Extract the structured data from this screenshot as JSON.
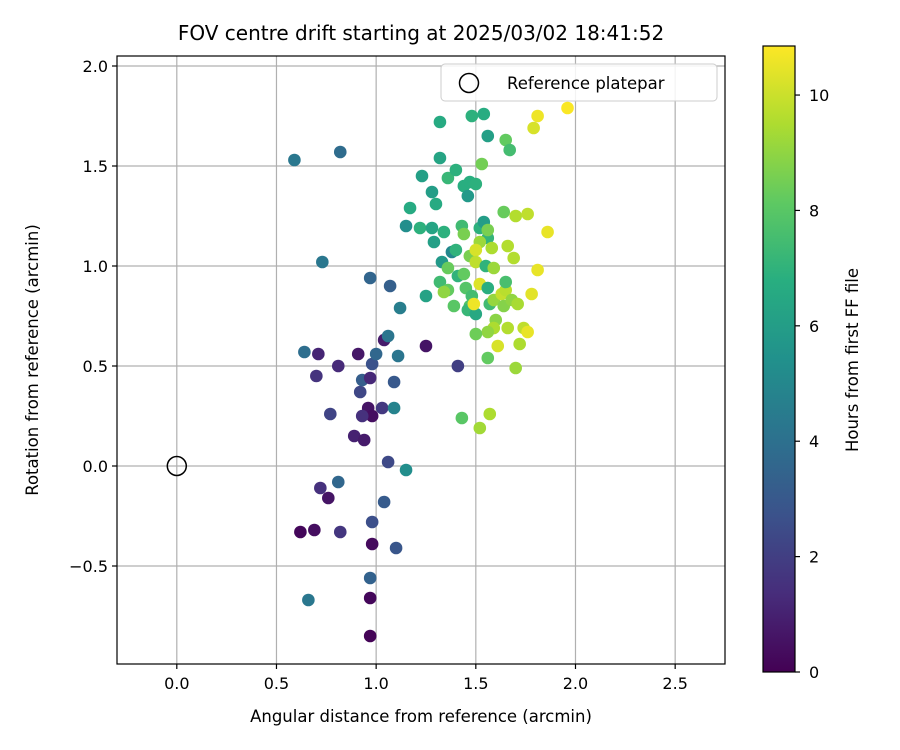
{
  "chart_data": {
    "type": "scatter",
    "title": "FOV centre drift starting at 2025/03/02 18:41:52",
    "xlabel": "Angular distance from reference (arcmin)",
    "ylabel": "Rotation from reference (arcmin)",
    "xlim": [
      -0.3,
      2.75
    ],
    "ylim": [
      -0.99,
      2.05
    ],
    "xticks": [
      "0.0",
      "0.5",
      "1.0",
      "1.5",
      "2.0",
      "2.5"
    ],
    "xtick_values": [
      0,
      0.5,
      1.0,
      1.5,
      2.0,
      2.5
    ],
    "yticks": [
      "−0.5",
      "0.0",
      "0.5",
      "1.0",
      "1.5",
      "2.0"
    ],
    "ytick_values": [
      -0.5,
      0,
      0.5,
      1.0,
      1.5,
      2.0
    ],
    "grid": true,
    "colormap": "viridis",
    "colorbar": {
      "label": "Hours from first FF file",
      "range": [
        0,
        10.85
      ],
      "ticks": [
        "0",
        "2",
        "4",
        "6",
        "8",
        "10"
      ],
      "tick_values": [
        0,
        2,
        4,
        6,
        8,
        10
      ]
    },
    "legend": {
      "placement": "top-right",
      "entries": [
        "Reference platepar"
      ]
    },
    "reference": {
      "x": 0.0,
      "y": 0.0,
      "label": "Reference platepar"
    },
    "points": [
      {
        "x": 0.97,
        "y": -0.85,
        "h": 0.1
      },
      {
        "x": 0.97,
        "y": -0.66,
        "h": 0.2
      },
      {
        "x": 0.98,
        "y": -0.39,
        "h": 0.3
      },
      {
        "x": 0.62,
        "y": -0.33,
        "h": 0.2
      },
      {
        "x": 0.69,
        "y": -0.32,
        "h": 0.4
      },
      {
        "x": 0.76,
        "y": -0.16,
        "h": 0.6
      },
      {
        "x": 0.72,
        "y": -0.11,
        "h": 1.5
      },
      {
        "x": 0.82,
        "y": -0.33,
        "h": 1.7
      },
      {
        "x": 0.98,
        "y": -0.28,
        "h": 2.6
      },
      {
        "x": 0.97,
        "y": -0.56,
        "h": 3.4
      },
      {
        "x": 1.1,
        "y": -0.41,
        "h": 2.9
      },
      {
        "x": 1.04,
        "y": -0.18,
        "h": 3.1
      },
      {
        "x": 0.81,
        "y": -0.08,
        "h": 3.6
      },
      {
        "x": 0.66,
        "y": -0.67,
        "h": 4.3
      },
      {
        "x": 1.06,
        "y": 0.02,
        "h": 2.4
      },
      {
        "x": 1.15,
        "y": -0.02,
        "h": 5.3
      },
      {
        "x": 0.89,
        "y": 0.15,
        "h": 1.0
      },
      {
        "x": 0.94,
        "y": 0.13,
        "h": 0.8
      },
      {
        "x": 0.96,
        "y": 0.29,
        "h": 0.6
      },
      {
        "x": 0.98,
        "y": 0.25,
        "h": 0.4
      },
      {
        "x": 0.93,
        "y": 0.25,
        "h": 1.5
      },
      {
        "x": 1.03,
        "y": 0.29,
        "h": 1.8
      },
      {
        "x": 0.77,
        "y": 0.26,
        "h": 2.2
      },
      {
        "x": 0.92,
        "y": 0.37,
        "h": 2.3
      },
      {
        "x": 0.93,
        "y": 0.43,
        "h": 3.2
      },
      {
        "x": 0.97,
        "y": 0.44,
        "h": 1.2
      },
      {
        "x": 1.09,
        "y": 0.29,
        "h": 4.8
      },
      {
        "x": 1.09,
        "y": 0.42,
        "h": 3.0
      },
      {
        "x": 0.7,
        "y": 0.45,
        "h": 1.6
      },
      {
        "x": 0.81,
        "y": 0.5,
        "h": 1.3
      },
      {
        "x": 0.71,
        "y": 0.56,
        "h": 1.1
      },
      {
        "x": 0.91,
        "y": 0.56,
        "h": 0.7
      },
      {
        "x": 0.64,
        "y": 0.57,
        "h": 3.9
      },
      {
        "x": 0.98,
        "y": 0.51,
        "h": 2.7
      },
      {
        "x": 1.0,
        "y": 0.56,
        "h": 3.6
      },
      {
        "x": 1.04,
        "y": 0.63,
        "h": 0.8
      },
      {
        "x": 1.06,
        "y": 0.65,
        "h": 4.2
      },
      {
        "x": 1.11,
        "y": 0.55,
        "h": 4.2
      },
      {
        "x": 1.25,
        "y": 0.6,
        "h": 0.6
      },
      {
        "x": 1.41,
        "y": 0.5,
        "h": 2.0
      },
      {
        "x": 1.12,
        "y": 0.79,
        "h": 4.6
      },
      {
        "x": 1.07,
        "y": 0.9,
        "h": 3.3
      },
      {
        "x": 0.97,
        "y": 0.94,
        "h": 3.5
      },
      {
        "x": 0.73,
        "y": 1.02,
        "h": 4.3
      },
      {
        "x": 0.59,
        "y": 1.53,
        "h": 4.3
      },
      {
        "x": 0.82,
        "y": 1.57,
        "h": 3.8
      },
      {
        "x": 1.15,
        "y": 1.2,
        "h": 5.3
      },
      {
        "x": 1.17,
        "y": 1.29,
        "h": 6.6
      },
      {
        "x": 1.23,
        "y": 1.45,
        "h": 6.1
      },
      {
        "x": 1.28,
        "y": 1.37,
        "h": 6.0
      },
      {
        "x": 1.3,
        "y": 1.31,
        "h": 6.6
      },
      {
        "x": 1.32,
        "y": 1.54,
        "h": 6.3
      },
      {
        "x": 1.32,
        "y": 1.72,
        "h": 6.6
      },
      {
        "x": 1.22,
        "y": 1.19,
        "h": 6.9
      },
      {
        "x": 1.28,
        "y": 1.19,
        "h": 6.3
      },
      {
        "x": 1.29,
        "y": 1.12,
        "h": 6.1
      },
      {
        "x": 1.34,
        "y": 1.17,
        "h": 6.9
      },
      {
        "x": 1.36,
        "y": 1.44,
        "h": 7.2
      },
      {
        "x": 1.38,
        "y": 1.07,
        "h": 5.0
      },
      {
        "x": 1.33,
        "y": 1.02,
        "h": 5.8
      },
      {
        "x": 1.4,
        "y": 1.08,
        "h": 7.0
      },
      {
        "x": 1.4,
        "y": 1.48,
        "h": 6.9
      },
      {
        "x": 1.43,
        "y": 1.2,
        "h": 7.4
      },
      {
        "x": 1.44,
        "y": 1.4,
        "h": 6.8
      },
      {
        "x": 1.46,
        "y": 1.35,
        "h": 5.8
      },
      {
        "x": 1.47,
        "y": 1.42,
        "h": 6.8
      },
      {
        "x": 1.48,
        "y": 1.75,
        "h": 6.9
      },
      {
        "x": 1.5,
        "y": 1.41,
        "h": 6.9
      },
      {
        "x": 1.54,
        "y": 1.76,
        "h": 6.7
      },
      {
        "x": 1.56,
        "y": 1.65,
        "h": 6.1
      },
      {
        "x": 1.52,
        "y": 1.19,
        "h": 6.9
      },
      {
        "x": 1.54,
        "y": 1.22,
        "h": 6.0
      },
      {
        "x": 1.53,
        "y": 1.51,
        "h": 8.5
      },
      {
        "x": 1.65,
        "y": 1.63,
        "h": 8.2
      },
      {
        "x": 1.67,
        "y": 1.58,
        "h": 7.5
      },
      {
        "x": 1.56,
        "y": 1.14,
        "h": 7.1
      },
      {
        "x": 1.56,
        "y": 1.18,
        "h": 8.6
      },
      {
        "x": 1.44,
        "y": 1.16,
        "h": 8.6
      },
      {
        "x": 1.47,
        "y": 1.05,
        "h": 8.6
      },
      {
        "x": 1.52,
        "y": 1.12,
        "h": 9.2
      },
      {
        "x": 1.58,
        "y": 1.09,
        "h": 9.5
      },
      {
        "x": 1.5,
        "y": 1.08,
        "h": 10.2
      },
      {
        "x": 1.5,
        "y": 1.02,
        "h": 9.8
      },
      {
        "x": 1.55,
        "y": 1.0,
        "h": 7.0
      },
      {
        "x": 1.59,
        "y": 0.99,
        "h": 9.2
      },
      {
        "x": 1.36,
        "y": 0.99,
        "h": 8.3
      },
      {
        "x": 1.32,
        "y": 0.92,
        "h": 7.4
      },
      {
        "x": 1.36,
        "y": 0.88,
        "h": 8.2
      },
      {
        "x": 1.41,
        "y": 0.95,
        "h": 7.0
      },
      {
        "x": 1.44,
        "y": 0.96,
        "h": 8.2
      },
      {
        "x": 1.45,
        "y": 0.89,
        "h": 7.9
      },
      {
        "x": 1.47,
        "y": 0.8,
        "h": 7.8
      },
      {
        "x": 1.48,
        "y": 0.85,
        "h": 7.5
      },
      {
        "x": 1.46,
        "y": 0.78,
        "h": 7.2
      },
      {
        "x": 1.5,
        "y": 0.76,
        "h": 6.5
      },
      {
        "x": 1.39,
        "y": 0.8,
        "h": 8.0
      },
      {
        "x": 1.34,
        "y": 0.87,
        "h": 9.0
      },
      {
        "x": 1.25,
        "y": 0.85,
        "h": 6.2
      },
      {
        "x": 1.49,
        "y": 0.81,
        "h": 10.6
      },
      {
        "x": 1.52,
        "y": 0.91,
        "h": 10.3
      },
      {
        "x": 1.56,
        "y": 0.89,
        "h": 6.8
      },
      {
        "x": 1.57,
        "y": 0.81,
        "h": 7.4
      },
      {
        "x": 1.59,
        "y": 0.83,
        "h": 9.1
      },
      {
        "x": 1.6,
        "y": 0.73,
        "h": 8.9
      },
      {
        "x": 1.59,
        "y": 0.69,
        "h": 9.5
      },
      {
        "x": 1.56,
        "y": 0.67,
        "h": 9.0
      },
      {
        "x": 1.5,
        "y": 0.66,
        "h": 8.4
      },
      {
        "x": 1.61,
        "y": 0.6,
        "h": 10.2
      },
      {
        "x": 1.56,
        "y": 0.54,
        "h": 8.2
      },
      {
        "x": 1.63,
        "y": 0.86,
        "h": 9.9
      },
      {
        "x": 1.65,
        "y": 0.88,
        "h": 9.7
      },
      {
        "x": 1.64,
        "y": 0.8,
        "h": 8.8
      },
      {
        "x": 1.65,
        "y": 0.92,
        "h": 7.6
      },
      {
        "x": 1.66,
        "y": 0.69,
        "h": 9.6
      },
      {
        "x": 1.68,
        "y": 0.83,
        "h": 9.0
      },
      {
        "x": 1.71,
        "y": 0.81,
        "h": 9.4
      },
      {
        "x": 1.7,
        "y": 0.49,
        "h": 9.2
      },
      {
        "x": 1.72,
        "y": 0.61,
        "h": 9.5
      },
      {
        "x": 1.74,
        "y": 0.69,
        "h": 9.8
      },
      {
        "x": 1.76,
        "y": 0.67,
        "h": 10.5
      },
      {
        "x": 1.78,
        "y": 0.86,
        "h": 10.4
      },
      {
        "x": 1.81,
        "y": 0.98,
        "h": 10.5
      },
      {
        "x": 1.64,
        "y": 1.27,
        "h": 8.3
      },
      {
        "x": 1.66,
        "y": 1.1,
        "h": 9.6
      },
      {
        "x": 1.69,
        "y": 1.04,
        "h": 9.6
      },
      {
        "x": 1.7,
        "y": 1.25,
        "h": 9.6
      },
      {
        "x": 1.76,
        "y": 1.26,
        "h": 9.8
      },
      {
        "x": 1.86,
        "y": 1.17,
        "h": 10.5
      },
      {
        "x": 1.79,
        "y": 1.69,
        "h": 10.2
      },
      {
        "x": 1.81,
        "y": 1.75,
        "h": 10.6
      },
      {
        "x": 1.96,
        "y": 1.79,
        "h": 10.8
      },
      {
        "x": 1.43,
        "y": 0.24,
        "h": 8.0
      },
      {
        "x": 1.52,
        "y": 0.19,
        "h": 9.3
      },
      {
        "x": 1.57,
        "y": 0.26,
        "h": 9.5
      }
    ]
  }
}
